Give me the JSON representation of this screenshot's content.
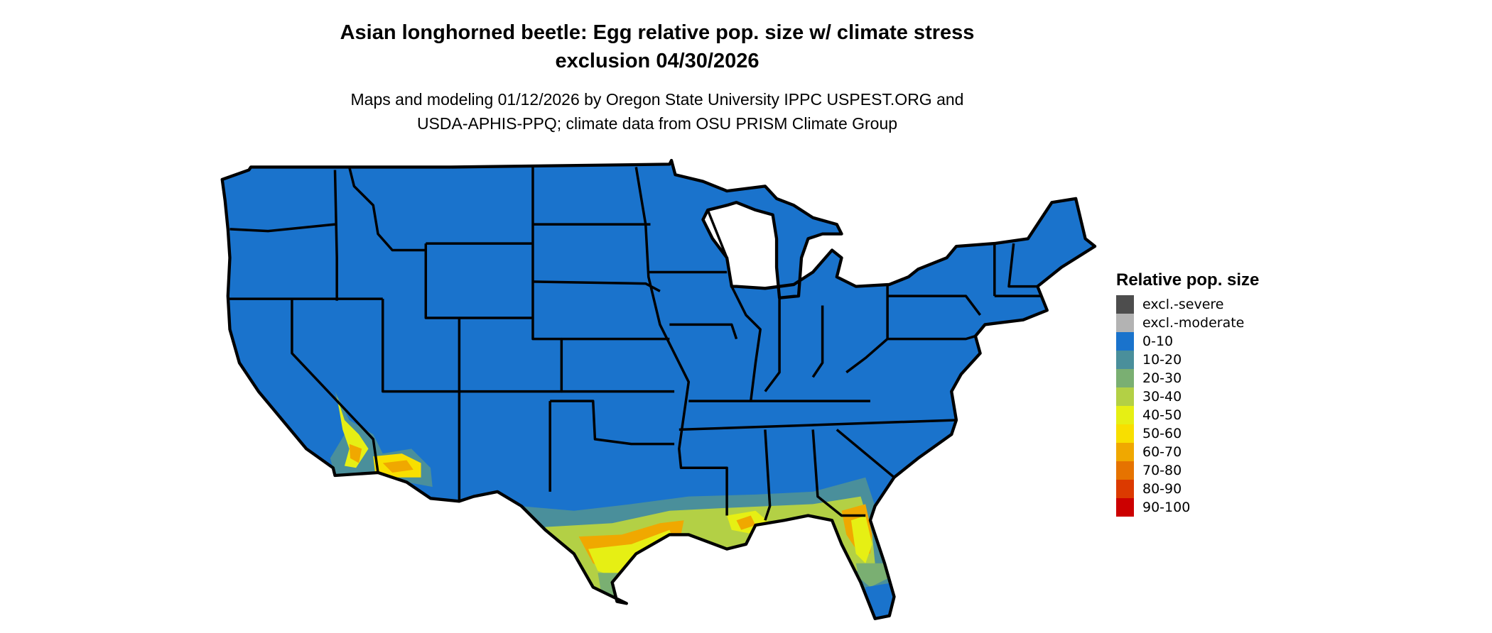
{
  "title": {
    "line1": "Asian longhorned beetle: Egg relative pop. size w/ climate stress",
    "line2": "exclusion 04/30/2026"
  },
  "subtitle": {
    "line1": "Maps and modeling 01/12/2026 by Oregon State University IPPC USPEST.ORG and",
    "line2": "USDA-APHIS-PPQ; climate data from OSU PRISM Climate Group"
  },
  "legend": {
    "title": "Relative pop. size",
    "items": [
      {
        "label": "excl.-severe",
        "color": "#4d4d4d"
      },
      {
        "label": "excl.-moderate",
        "color": "#b3b3b3"
      },
      {
        "label": "0-10",
        "color": "#1a73cc"
      },
      {
        "label": "10-20",
        "color": "#4a8f9b"
      },
      {
        "label": "20-30",
        "color": "#7aaf72"
      },
      {
        "label": "30-40",
        "color": "#b3d045"
      },
      {
        "label": "40-50",
        "color": "#e6ef14"
      },
      {
        "label": "50-60",
        "color": "#f8df00"
      },
      {
        "label": "60-70",
        "color": "#f0a800"
      },
      {
        "label": "70-80",
        "color": "#e67300"
      },
      {
        "label": "80-90",
        "color": "#dc3a00"
      },
      {
        "label": "90-100",
        "color": "#cc0000"
      }
    ]
  },
  "map": {
    "region": "Contiguous United States",
    "base_class": "0-10",
    "elevated_regions": [
      "Southern California / southwest Arizona",
      "South Texas Gulf coast",
      "Louisiana coast",
      "Northern & central Florida"
    ]
  }
}
